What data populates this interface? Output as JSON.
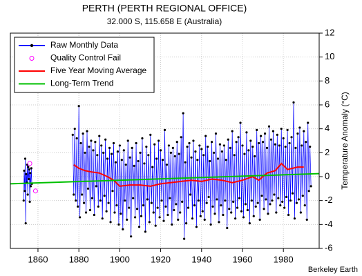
{
  "chart_data": {
    "type": "line",
    "title": "PERTH (PERTH REGIONAL OFFICE)",
    "subtitle": "32.000 S, 115.658 E (Australia)",
    "y_label": "Temperature Anomaly (°C)",
    "credit": "Berkeley Earth",
    "xlim": [
      1846.5,
      1997.5
    ],
    "xticks": [
      1860,
      1880,
      1900,
      1920,
      1940,
      1960,
      1980
    ],
    "ylim": [
      -6,
      12
    ],
    "yticks": [
      -6,
      -4,
      -2,
      0,
      2,
      4,
      6,
      8,
      10,
      12
    ],
    "grid": true,
    "legend": "upper left",
    "series": [
      {
        "name": "Raw Monthly Data",
        "color": "#0000ff",
        "x": [
          1853,
          1853.25,
          1853.5,
          1853.75,
          1854,
          1854.25,
          1854.5,
          1854.75,
          1855,
          1855.25,
          1855.5,
          1855.75,
          1856,
          1856.25,
          1856.5,
          1856.75,
          1857,
          1865,
          1877,
          1877.5,
          1878,
          1878.5,
          1879,
          1879.5,
          1880,
          1880.5,
          1881,
          1881.5,
          1882,
          1882.5,
          1883,
          1883.5,
          1884,
          1884.5,
          1885,
          1885.5,
          1886,
          1886.5,
          1887,
          1887.5,
          1888,
          1888.5,
          1889,
          1889.5,
          1890,
          1890.5,
          1891,
          1891.5,
          1892,
          1892.5,
          1893,
          1893.5,
          1894,
          1894.5,
          1895,
          1895.5,
          1896,
          1896.5,
          1897,
          1897.5,
          1898,
          1898.5,
          1899,
          1899.5,
          1900,
          1900.5,
          1901,
          1901.5,
          1902,
          1902.5,
          1903,
          1903.5,
          1904,
          1904.5,
          1905,
          1905.5,
          1906,
          1906.5,
          1907,
          1907.5,
          1908,
          1908.5,
          1909,
          1909.5,
          1910,
          1910.5,
          1911,
          1911.5,
          1912,
          1912.5,
          1913,
          1913.5,
          1914,
          1914.5,
          1915,
          1915.5,
          1916,
          1916.5,
          1917,
          1917.5,
          1918,
          1918.5,
          1919,
          1919.5,
          1920,
          1920.5,
          1921,
          1921.5,
          1922,
          1922.5,
          1923,
          1923.5,
          1924,
          1924.5,
          1925,
          1925.5,
          1926,
          1926.5,
          1927,
          1927.5,
          1928,
          1928.5,
          1929,
          1929.5,
          1930,
          1930.5,
          1931,
          1931.5,
          1932,
          1932.5,
          1933,
          1933.5,
          1934,
          1934.5,
          1935,
          1935.5,
          1936,
          1936.5,
          1937,
          1937.5,
          1938,
          1938.5,
          1939,
          1939.5,
          1940,
          1940.5,
          1941,
          1941.5,
          1942,
          1942.5,
          1943,
          1943.5,
          1944,
          1944.5,
          1945,
          1945.5,
          1946,
          1946.5,
          1947,
          1947.5,
          1948,
          1948.5,
          1949,
          1949.5,
          1950,
          1950.5,
          1951,
          1951.5,
          1952,
          1952.5,
          1953,
          1953.5,
          1954,
          1954.5,
          1955,
          1955.5,
          1956,
          1956.5,
          1957,
          1957.5,
          1958,
          1958.5,
          1959,
          1959.5,
          1960,
          1960.5,
          1961,
          1961.5,
          1962,
          1962.5,
          1963,
          1963.5,
          1964,
          1964.5,
          1965,
          1965.5,
          1966,
          1966.5,
          1967,
          1967.5,
          1968,
          1968.5,
          1969,
          1969.5,
          1970,
          1970.5,
          1971,
          1971.5,
          1972,
          1972.5,
          1973,
          1973.5,
          1974,
          1974.5,
          1975,
          1975.5,
          1976,
          1976.5,
          1977,
          1977.5,
          1978,
          1978.5,
          1979,
          1979.5,
          1980,
          1980.5,
          1981,
          1981.5,
          1982,
          1982.5,
          1983,
          1983.5,
          1984,
          1984.5,
          1985,
          1985.5,
          1986,
          1986.5,
          1987,
          1987.5,
          1988,
          1988.5,
          1989,
          1989.5,
          1990,
          1990.5,
          1991,
          1991.5,
          1992,
          1992.5,
          1993,
          1993.5
        ],
        "values": [
          -2,
          0.5,
          -1.2,
          1.5,
          -3.9,
          0.2,
          -0.5,
          1.0,
          -1.5,
          0.8,
          -0.2,
          0.6,
          -2.1,
          0.3,
          -0.8,
          0.7,
          -0.6,
          null,
          3.5,
          -1.5,
          4.0,
          -2.0,
          3.2,
          -2.5,
          5.9,
          -3.4,
          2.8,
          -1.5,
          3.6,
          -2.2,
          2.0,
          -3.0,
          3.8,
          -1.0,
          2.5,
          -2.8,
          3.0,
          -1.8,
          2.2,
          -3.2,
          2.9,
          -0.8,
          1.8,
          -2.5,
          3.4,
          -2.0,
          2.6,
          -3.5,
          2.0,
          -1.6,
          3.1,
          -2.9,
          1.5,
          -2.2,
          2.4,
          -3.8,
          1.9,
          -1.2,
          2.8,
          -3.0,
          1.2,
          -2.4,
          2.1,
          -4.0,
          2.6,
          -3.1,
          1.4,
          -4.4,
          2.2,
          -2.0,
          1.0,
          -3.6,
          3.0,
          -2.6,
          1.6,
          -5.0,
          2.4,
          -1.8,
          0.9,
          -3.4,
          2.8,
          -2.7,
          1.3,
          -4.2,
          2.0,
          -3.3,
          3.2,
          -2.4,
          1.1,
          -4.6,
          2.5,
          -1.9,
          1.8,
          -3.8,
          3.5,
          -2.2,
          0.8,
          -3.0,
          2.7,
          -4.1,
          1.5,
          -2.6,
          3.0,
          -3.4,
          2.2,
          -2.0,
          1.4,
          -3.7,
          3.9,
          -2.5,
          1.0,
          -3.2,
          2.6,
          -1.8,
          2.0,
          -4.0,
          2.4,
          -2.8,
          1.7,
          -2.3,
          2.9,
          -3.6,
          1.9,
          -3.0,
          3.3,
          -2.1,
          5.3,
          -5.2,
          1.2,
          -3.9,
          2.5,
          -2.6,
          2.8,
          -1.5,
          1.6,
          -3.5,
          3.0,
          -2.4,
          2.1,
          -4.2,
          1.4,
          -2.0,
          2.6,
          -3.3,
          2.3,
          -2.9,
          1.8,
          -3.6,
          3.4,
          -2.2,
          2.5,
          -1.7,
          1.3,
          -4.0,
          2.9,
          -2.5,
          2.0,
          -3.1,
          3.6,
          -1.9,
          1.5,
          -3.8,
          2.7,
          -2.4,
          2.1,
          -3.2,
          2.6,
          -2.0,
          1.4,
          -4.3,
          3.1,
          -2.7,
          2.4,
          -3.0,
          3.8,
          -2.1,
          1.8,
          -3.5,
          2.9,
          -2.6,
          3.3,
          -1.8,
          4.5,
          -2.9,
          2.6,
          -3.4,
          1.9,
          -2.3,
          3.7,
          -2.8,
          2.2,
          -3.9,
          3.0,
          -2.0,
          2.5,
          -3.3,
          1.7,
          -2.5,
          3.9,
          -2.2,
          2.8,
          -3.6,
          3.4,
          -1.6,
          2.9,
          -2.7,
          3.6,
          -1.9,
          2.4,
          -3.1,
          4.2,
          -2.3,
          3.1,
          -2.0,
          3.8,
          -1.5,
          2.7,
          -3.0,
          3.5,
          -1.8,
          2.6,
          -2.4,
          4.0,
          -2.1,
          3.2,
          -2.6,
          2.5,
          -1.7,
          3.9,
          -3.2,
          2.8,
          -2.0,
          3.3,
          -1.4,
          6.2,
          -3.5,
          2.4,
          -2.2,
          3.6,
          -1.9,
          4.1,
          -3.0,
          2.6,
          -1.6,
          3.8,
          -2.4,
          2.9,
          -3.6,
          4.5,
          -1.2,
          2.5,
          -0.8
        ]
      },
      {
        "name": "Quality Control Fail",
        "color": "#ff00ff",
        "x": [
          1856,
          1858.8
        ],
        "values": [
          1.1,
          -1.2
        ]
      },
      {
        "name": "Five Year Moving Average",
        "color": "#ff0000",
        "x": [
          1877.5,
          1880,
          1883,
          1886,
          1890,
          1894,
          1897,
          1900,
          1905,
          1910,
          1915,
          1920,
          1925,
          1930,
          1935,
          1940,
          1945,
          1950,
          1955,
          1960,
          1965,
          1968,
          1972,
          1976,
          1979,
          1982,
          1987,
          1990
        ],
        "values": [
          1.0,
          0.7,
          0.5,
          0.4,
          0.3,
          0.0,
          -0.3,
          -0.8,
          -0.7,
          -0.7,
          -0.8,
          -0.6,
          -0.5,
          -0.4,
          -0.3,
          -0.4,
          -0.2,
          -0.3,
          -0.5,
          -0.3,
          0.0,
          -0.3,
          0.3,
          0.5,
          1.1,
          0.6,
          0.8,
          0.8
        ]
      },
      {
        "name": "Long-Term Trend",
        "color": "#00c000",
        "x": [
          1846.5,
          1997.5
        ],
        "values": [
          -0.6,
          0.25
        ]
      }
    ]
  }
}
